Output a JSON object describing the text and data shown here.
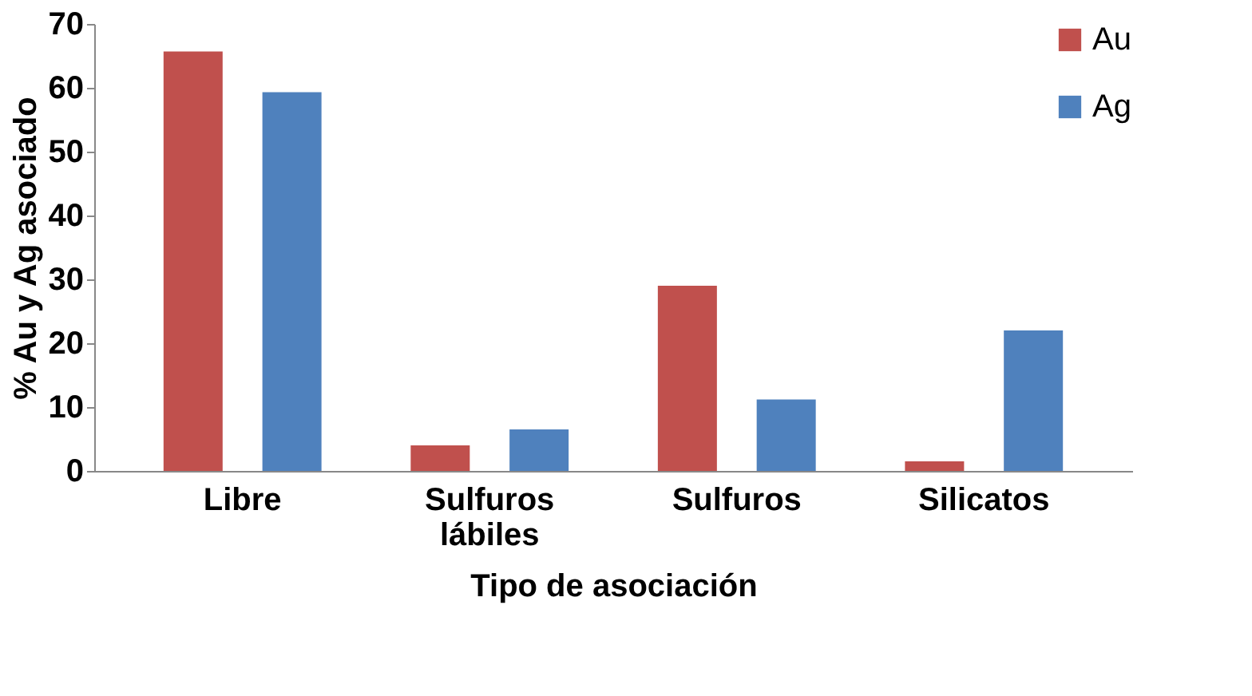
{
  "chart_data": {
    "type": "bar",
    "xlabel": "Tipo de asociación",
    "ylabel": "% Au y Ag asociado",
    "categories": [
      "Libre",
      "Sulfuros lábiles",
      "Sulfuros",
      "Silicatos"
    ],
    "series": [
      {
        "name": "Au",
        "color": "#c0504d",
        "values": [
          65.7,
          4,
          29,
          1.5
        ]
      },
      {
        "name": "Ag",
        "color": "#4f81bd",
        "values": [
          59.3,
          6.5,
          11.2,
          22
        ]
      }
    ],
    "ylim": [
      0,
      70
    ],
    "yticks": [
      0,
      10,
      20,
      30,
      40,
      50,
      60,
      70
    ],
    "grid": false,
    "legend": "top right"
  }
}
